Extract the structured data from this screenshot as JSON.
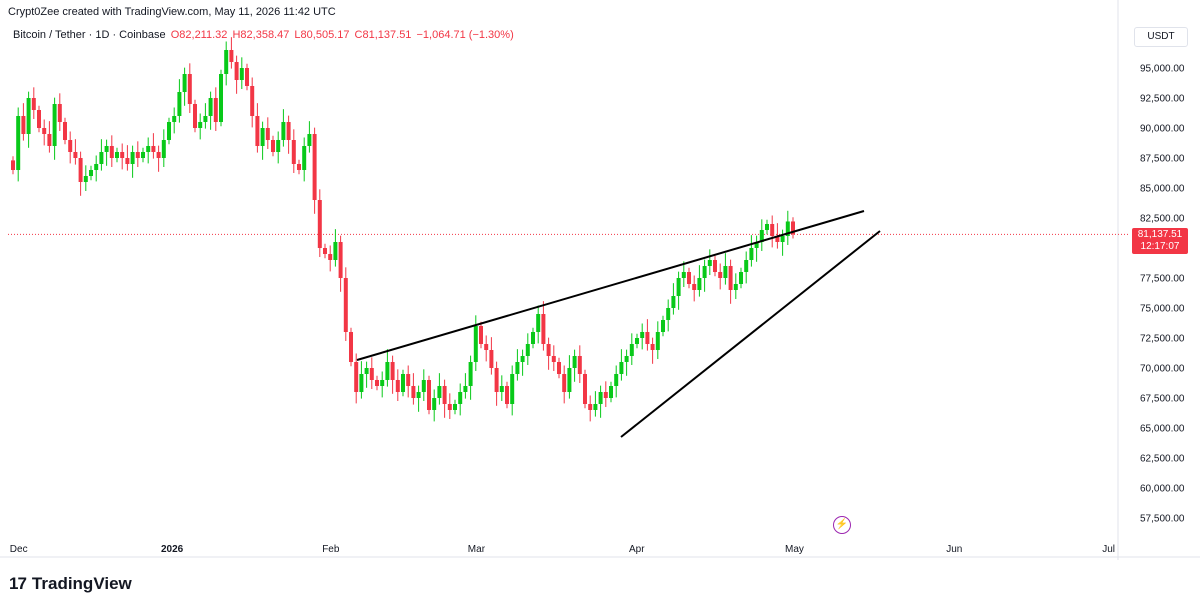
{
  "header": {
    "created_by": "Crypt0Zee created with TradingView.com, May 11, 2026 11:42 UTC"
  },
  "legend": {
    "symbol": "Bitcoin / Tether · 1D · Coinbase",
    "open": "O82,211.32",
    "high": "H82,358.47",
    "low": "L80,505.17",
    "close": "C81,137.51",
    "change": "−1,064.71 (−1.30%)"
  },
  "currency": "USDT",
  "price_tag": {
    "price": "81,137.51",
    "countdown": "12:17:07"
  },
  "logo": {
    "mark": "17",
    "text": "TradingView"
  },
  "colors": {
    "up": "#22ab94",
    "up_bright": "#08c919",
    "down": "#f23645",
    "line": "#000000"
  },
  "chart_data": {
    "type": "candlestick",
    "ylim": [
      56000,
      99000
    ],
    "y_ticks": [
      {
        "v": 95000,
        "label": "95,000.00"
      },
      {
        "v": 92500,
        "label": "92,500.00"
      },
      {
        "v": 90000,
        "label": "90,000.00"
      },
      {
        "v": 87500,
        "label": "87,500.00"
      },
      {
        "v": 85000,
        "label": "85,000.00"
      },
      {
        "v": 82500,
        "label": "82,500.00"
      },
      {
        "v": 77500,
        "label": "77,500.00"
      },
      {
        "v": 75000,
        "label": "75,000.00"
      },
      {
        "v": 72500,
        "label": "72,500.00"
      },
      {
        "v": 70000,
        "label": "70,000.00"
      },
      {
        "v": 67500,
        "label": "67,500.00"
      },
      {
        "v": 65000,
        "label": "65,000.00"
      },
      {
        "v": 62500,
        "label": "62,500.00"
      },
      {
        "v": 60000,
        "label": "60,000.00"
      },
      {
        "v": 57500,
        "label": "57,500.00"
      }
    ],
    "x_ticks": [
      {
        "label": "Dec",
        "i": -1,
        "bold": false
      },
      {
        "label": "2026",
        "i": 30,
        "bold": true
      },
      {
        "label": "Feb",
        "i": 61,
        "bold": false
      },
      {
        "label": "Mar",
        "i": 89,
        "bold": false
      },
      {
        "label": "Apr",
        "i": 120,
        "bold": false
      },
      {
        "label": "May",
        "i": 150,
        "bold": false
      },
      {
        "label": "Jun",
        "i": 181,
        "bold": false
      },
      {
        "label": "Jul",
        "i": 211,
        "bold": false
      }
    ],
    "last_price": 81137.51,
    "closes": [
      86500,
      91000,
      89500,
      92500,
      91500,
      90000,
      89500,
      88500,
      92000,
      90500,
      89000,
      88000,
      87500,
      85500,
      86000,
      86500,
      87000,
      88000,
      88500,
      87500,
      88000,
      87500,
      87000,
      88000,
      87500,
      88000,
      88500,
      88000,
      87500,
      89000,
      90500,
      91000,
      93000,
      94500,
      92000,
      90000,
      90500,
      91000,
      92500,
      90500,
      94500,
      96500,
      95500,
      94000,
      95000,
      93500,
      91000,
      88500,
      90000,
      89000,
      88000,
      89000,
      90500,
      89000,
      87000,
      86500,
      88500,
      89500,
      84000,
      80000,
      79500,
      79000,
      80500,
      77500,
      73000,
      70500,
      68000,
      69500,
      70000,
      69000,
      68500,
      69000,
      70500,
      69000,
      68000,
      69500,
      68500,
      67500,
      68000,
      69000,
      66500,
      67500,
      68500,
      67000,
      66500,
      67000,
      68000,
      68500,
      70500,
      73500,
      72000,
      71500,
      70000,
      68000,
      68500,
      67000,
      69500,
      70500,
      71000,
      72000,
      73000,
      74500,
      72000,
      71000,
      70500,
      69500,
      68000,
      70000,
      71000,
      69500,
      67000,
      66500,
      67000,
      68000,
      67500,
      68500,
      69500,
      70500,
      71000,
      72000,
      72500,
      73000,
      72000,
      71500,
      73000,
      74000,
      75000,
      76000,
      77500,
      78000,
      77000,
      76500,
      77500,
      78500,
      79000,
      78000,
      77500,
      78500,
      76500,
      77000,
      78000,
      79000,
      80000,
      80500,
      81500,
      82000,
      81000,
      80500,
      81000,
      82211,
      81137
    ]
  }
}
